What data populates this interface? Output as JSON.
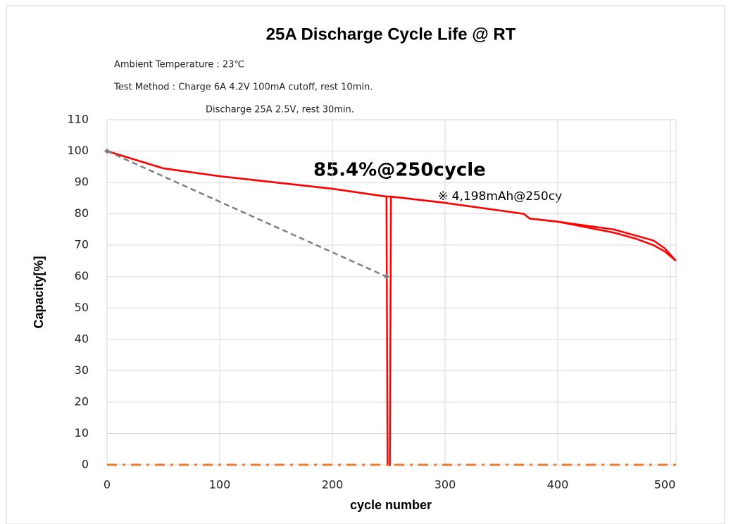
{
  "chart_data": {
    "type": "line",
    "title": "25A Discharge Cycle Life @ RT",
    "notes": [
      "Ambient Temperature : 23℃",
      "Test Method : Charge 6A 4.2V 100mA cutoff, rest 10min.",
      "Discharge 25A 2.5V,  rest 30min."
    ],
    "annotations": [
      "85.4%@250cycle",
      "※ 4,198mAh@250cy"
    ],
    "x_label": "cycle number",
    "y_label": "Capacity[%]",
    "xlim": [
      0,
      505
    ],
    "xticks": [
      0,
      100,
      200,
      300,
      400,
      500
    ],
    "ylim": [
      0,
      110
    ],
    "yticks": [
      0,
      10,
      20,
      30,
      40,
      50,
      60,
      70,
      80,
      90,
      100,
      110
    ],
    "grid": true,
    "series": [
      {
        "color": "#ff0000",
        "line_style": "solid",
        "x": [
          0,
          50,
          100,
          150,
          200,
          248,
          249,
          251,
          252,
          300,
          350,
          370,
          375,
          400,
          450,
          470,
          485,
          495,
          505
        ],
        "values": [
          100,
          94.5,
          92,
          90,
          88,
          85.5,
          0,
          0,
          85.5,
          83.5,
          81,
          80,
          78.5,
          77.5,
          74,
          72,
          70,
          68,
          65
        ]
      },
      {
        "color": "#ff0000",
        "line_style": "solid",
        "x": [
          0,
          50,
          100,
          150,
          200,
          248,
          252,
          300,
          350,
          370,
          375,
          400,
          450,
          470,
          485,
          495,
          505
        ],
        "values": [
          100,
          94.5,
          92,
          90,
          88,
          85.5,
          85.5,
          83.5,
          81,
          80,
          78.5,
          77.5,
          75,
          73,
          71.5,
          69,
          65
        ]
      },
      {
        "color": "#7f7f7f",
        "line_style": "dashed",
        "marker": "diamond",
        "x": [
          0,
          248
        ],
        "values": [
          100,
          60
        ]
      },
      {
        "color": "#ed7d31",
        "line_style": "dashdot",
        "x": [
          0,
          505
        ],
        "values": [
          0,
          0
        ]
      }
    ]
  }
}
